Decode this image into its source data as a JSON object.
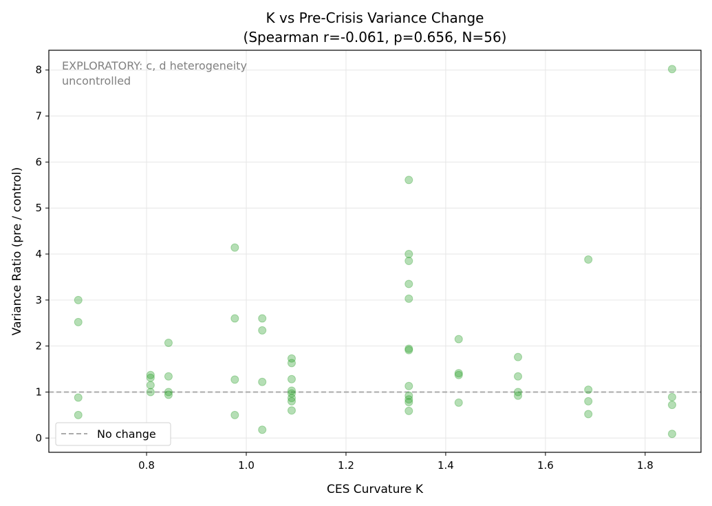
{
  "chart_data": {
    "type": "scatter",
    "title": "K vs Pre-Crisis Variance Change",
    "subtitle": "(Spearman r=-0.061, p=0.656, N=56)",
    "xlabel": "CES Curvature K",
    "ylabel": "Variance Ratio (pre / control)",
    "xlim": [
      0.604,
      1.912
    ],
    "ylim": [
      -0.31,
      8.43
    ],
    "xticks": [
      0.8,
      1.0,
      1.2,
      1.4,
      1.6,
      1.8
    ],
    "xtick_labels": [
      "0.8",
      "1.0",
      "1.2",
      "1.4",
      "1.6",
      "1.8"
    ],
    "yticks": [
      0,
      1,
      2,
      3,
      4,
      5,
      6,
      7,
      8
    ],
    "ytick_labels": [
      "0",
      "1",
      "2",
      "3",
      "4",
      "5",
      "6",
      "7",
      "8"
    ],
    "grid": true,
    "point_color": "#2ca02c",
    "reference_line": {
      "y": 1,
      "label": "No change",
      "color": "#aaaaaa",
      "style": "dashed"
    },
    "legend": {
      "placement": "lower-left",
      "entries": [
        "No change"
      ]
    },
    "annotation": [
      "EXPLORATORY: c, d heterogeneity",
      "uncontrolled"
    ],
    "points": [
      [
        0.663,
        3.0
      ],
      [
        0.663,
        2.52
      ],
      [
        0.663,
        0.88
      ],
      [
        0.663,
        0.5
      ],
      [
        0.808,
        1.37
      ],
      [
        0.808,
        1.31
      ],
      [
        0.808,
        1.15
      ],
      [
        0.808,
        1.0
      ],
      [
        0.844,
        2.07
      ],
      [
        0.844,
        1.34
      ],
      [
        0.844,
        1.0
      ],
      [
        0.844,
        0.94
      ],
      [
        0.977,
        4.14
      ],
      [
        0.977,
        2.6
      ],
      [
        0.977,
        1.27
      ],
      [
        0.977,
        0.5
      ],
      [
        1.032,
        2.6
      ],
      [
        1.032,
        2.34
      ],
      [
        1.032,
        1.22
      ],
      [
        1.032,
        0.18
      ],
      [
        1.091,
        1.73
      ],
      [
        1.091,
        1.63
      ],
      [
        1.091,
        1.28
      ],
      [
        1.091,
        1.03
      ],
      [
        1.091,
        0.97
      ],
      [
        1.091,
        0.87
      ],
      [
        1.091,
        0.8
      ],
      [
        1.091,
        0.6
      ],
      [
        1.326,
        5.61
      ],
      [
        1.326,
        4.0
      ],
      [
        1.326,
        3.85
      ],
      [
        1.326,
        3.35
      ],
      [
        1.326,
        3.03
      ],
      [
        1.326,
        1.94
      ],
      [
        1.326,
        1.91
      ],
      [
        1.326,
        1.13
      ],
      [
        1.326,
        0.92
      ],
      [
        1.326,
        0.84
      ],
      [
        1.326,
        0.78
      ],
      [
        1.326,
        0.59
      ],
      [
        1.426,
        2.15
      ],
      [
        1.426,
        1.41
      ],
      [
        1.426,
        1.37
      ],
      [
        1.426,
        0.77
      ],
      [
        1.545,
        1.76
      ],
      [
        1.545,
        1.34
      ],
      [
        1.545,
        1.0
      ],
      [
        1.545,
        0.92
      ],
      [
        1.686,
        3.88
      ],
      [
        1.686,
        1.05
      ],
      [
        1.686,
        0.8
      ],
      [
        1.686,
        0.52
      ],
      [
        1.854,
        8.02
      ],
      [
        1.854,
        0.89
      ],
      [
        1.854,
        0.72
      ],
      [
        1.854,
        0.09
      ]
    ]
  }
}
